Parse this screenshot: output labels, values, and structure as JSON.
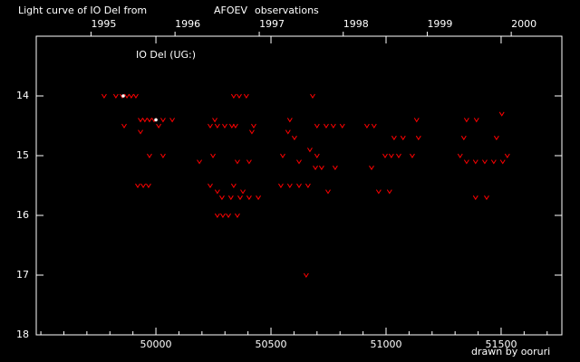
{
  "chart_data": {
    "type": "scatter",
    "title": [
      "Light curve of IO Del from",
      "AFOEV",
      "observations"
    ],
    "title_colors": [
      "#ffffff",
      "#ffff00",
      "#ffffff"
    ],
    "annotation": "IO Del (UG:)",
    "credit": "drawn by ooruri",
    "credit_color": "#00ffff",
    "xlim": [
      49480,
      51764
    ],
    "ylim": [
      18,
      13
    ],
    "xticks": [
      50000,
      50500,
      51000,
      51500
    ],
    "xminorticks": [
      49500,
      49600,
      49700,
      49800,
      49900,
      50100,
      50200,
      50300,
      50400,
      50600,
      50700,
      50800,
      50900,
      51100,
      51200,
      51300,
      51400,
      51600,
      51700
    ],
    "yticks": [
      14,
      15,
      16,
      17,
      18
    ],
    "x2ticks": [
      {
        "value": 49718,
        "label": "1995"
      },
      {
        "value": 50083,
        "label": "1996"
      },
      {
        "value": 50449,
        "label": "1997"
      },
      {
        "value": 50814,
        "label": "1998"
      },
      {
        "value": 51179,
        "label": "1999"
      },
      {
        "value": 51544,
        "label": "2000"
      }
    ],
    "series": [
      {
        "marker": "v",
        "color": "#ff0000",
        "x": [
          49775,
          49826,
          49854,
          49874,
          49893,
          49913,
          49862,
          49933,
          49952,
          49972,
          49992,
          49933,
          49921,
          49945,
          49968,
          49972,
          50031,
          50031,
          50071,
          50012,
          50189,
          50236,
          50267,
          50299,
          50330,
          50256,
          50248,
          50236,
          50267,
          50267,
          50291,
          50315,
          50354,
          50287,
          50326,
          50366,
          50405,
          50445,
          50338,
          50362,
          50393,
          50346,
          50425,
          50354,
          50405,
          50338,
          50378,
          50417,
          50543,
          50582,
          50622,
          50661,
          50582,
          50574,
          50602,
          50551,
          50622,
          50681,
          50653,
          50693,
          50720,
          50700,
          50740,
          50771,
          50669,
          50700,
          50748,
          50779,
          50810,
          50917,
          50948,
          50937,
          50968,
          50996,
          51023,
          51055,
          51015,
          51035,
          51074,
          51141,
          51114,
          51133,
          51322,
          51350,
          51338,
          51350,
          51389,
          51429,
          51468,
          51507,
          51393,
          51389,
          51437,
          51503,
          51480,
          51527
        ],
        "values": [
          14.0,
          14.0,
          14.0,
          14.0,
          14.0,
          14.0,
          14.5,
          14.4,
          14.4,
          14.4,
          14.4,
          14.6,
          15.5,
          15.5,
          15.5,
          15.0,
          15.0,
          14.4,
          14.4,
          14.5,
          15.1,
          14.5,
          14.5,
          14.5,
          14.5,
          14.4,
          15.0,
          15.5,
          15.6,
          16.0,
          16.0,
          16.0,
          16.0,
          15.7,
          15.7,
          15.7,
          15.7,
          15.7,
          14.0,
          14.0,
          14.0,
          14.5,
          14.5,
          15.1,
          15.1,
          15.5,
          15.6,
          14.6,
          15.5,
          15.5,
          15.5,
          15.5,
          14.4,
          14.6,
          14.7,
          15.0,
          15.1,
          14.0,
          17.0,
          15.2,
          15.2,
          14.5,
          14.5,
          14.5,
          14.9,
          15.0,
          15.6,
          15.2,
          14.5,
          14.5,
          14.5,
          15.2,
          15.6,
          15.0,
          15.0,
          15.0,
          15.6,
          14.7,
          14.7,
          14.7,
          15.0,
          14.4,
          15.0,
          14.4,
          14.7,
          15.1,
          15.1,
          15.1,
          15.1,
          15.1,
          14.4,
          15.7,
          15.7,
          14.3,
          14.7,
          15.0
        ]
      },
      {
        "marker": "dot",
        "color": "#ffffff",
        "x": [
          49858,
          50000
        ],
        "values": [
          14.0,
          14.4
        ]
      }
    ]
  }
}
